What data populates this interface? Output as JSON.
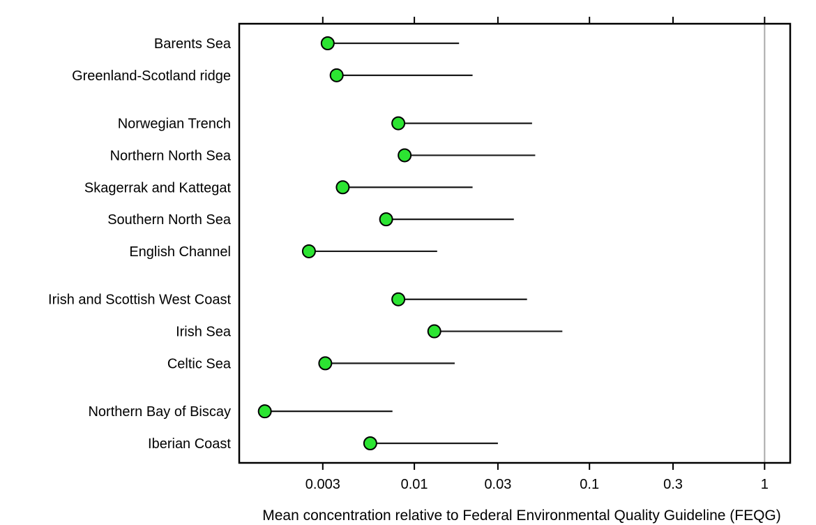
{
  "chart_data": {
    "type": "scatter",
    "subtype": "dot-with-range-line",
    "title": "",
    "xlabel": "Mean concentration relative to Federal Environmental Quality Guideline (FEQG)",
    "ylabel": "",
    "x_scale": "log",
    "x_range": [
      0.001,
      1.4
    ],
    "x_tick_values": [
      0.003,
      0.01,
      0.03,
      0.1,
      0.3,
      1
    ],
    "x_tick_labels": [
      "0.003",
      "0.01",
      "0.03",
      "0.1",
      "0.3",
      "1"
    ],
    "grid": false,
    "legend_position": "none",
    "reference_line_value": 1,
    "colors": {
      "marker_fill": "#2ce432",
      "marker_stroke": "#000000",
      "range_line": "#1a1a1a",
      "reference_line": "#ababab",
      "axis": "#000000"
    },
    "series": [
      {
        "label": "Barents Sea",
        "group": 1,
        "mean": 0.0032,
        "max": 0.018
      },
      {
        "label": "Greenland-Scotland ridge",
        "group": 1,
        "mean": 0.0036,
        "max": 0.0215
      },
      {
        "label": "Norwegian Trench",
        "group": 2,
        "mean": 0.0081,
        "max": 0.047
      },
      {
        "label": "Northern North Sea",
        "group": 2,
        "mean": 0.0088,
        "max": 0.049
      },
      {
        "label": "Skagerrak and Kattegat",
        "group": 2,
        "mean": 0.0039,
        "max": 0.0215
      },
      {
        "label": "Southern North Sea",
        "group": 2,
        "mean": 0.0069,
        "max": 0.037
      },
      {
        "label": "English Channel",
        "group": 2,
        "mean": 0.0025,
        "max": 0.0135
      },
      {
        "label": "Irish and Scottish West Coast",
        "group": 3,
        "mean": 0.0081,
        "max": 0.044
      },
      {
        "label": "Irish Sea",
        "group": 3,
        "mean": 0.013,
        "max": 0.07
      },
      {
        "label": "Celtic Sea",
        "group": 3,
        "mean": 0.0031,
        "max": 0.017
      },
      {
        "label": "Northern Bay of Biscay",
        "group": 4,
        "mean": 0.0014,
        "max": 0.0075
      },
      {
        "label": "Iberian Coast",
        "group": 4,
        "mean": 0.0056,
        "max": 0.03
      }
    ]
  }
}
